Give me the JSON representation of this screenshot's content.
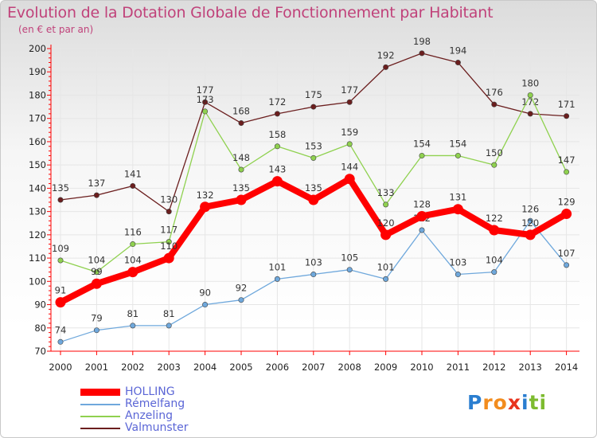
{
  "header": {
    "title": "Evolution de la Dotation Globale de Fonctionnement par Habitant",
    "subtitle": "(en € et par an)"
  },
  "logo": {
    "text": "Proxiti",
    "letters": [
      {
        "ch": "P",
        "color": "#2a7ed0"
      },
      {
        "ch": "r",
        "color": "#f28c1e"
      },
      {
        "ch": "o",
        "color": "#f28c1e"
      },
      {
        "ch": "x",
        "color": "#e8331d"
      },
      {
        "ch": "i",
        "color": "#2a7ed0"
      },
      {
        "ch": "t",
        "color": "#7dbb2f"
      },
      {
        "ch": "i",
        "color": "#7dbb2f"
      }
    ]
  },
  "colors": {
    "title": "#c0427a",
    "legend_text": "#5b66d6",
    "axis": "#ff0000",
    "grid": "#e6e6e6"
  },
  "chart_data": {
    "type": "line",
    "title": "Evolution de la Dotation Globale de Fonctionnement par Habitant",
    "subtitle": "(en € et par an)",
    "x": [
      "2000",
      "2001",
      "2002",
      "2003",
      "2004",
      "2005",
      "2006",
      "2007",
      "2008",
      "2009",
      "2010",
      "2011",
      "2012",
      "2013",
      "2014"
    ],
    "ylim": [
      70,
      200
    ],
    "yticks": [
      70,
      80,
      90,
      100,
      110,
      120,
      130,
      140,
      150,
      160,
      170,
      180,
      190,
      200
    ],
    "grid": true,
    "legend_position": "bottom-left",
    "series": [
      {
        "name": "Valmunster",
        "color": "#6b1e1e",
        "values": [
          135,
          137,
          141,
          130,
          177,
          168,
          172,
          175,
          177,
          192,
          198,
          194,
          176,
          172,
          171
        ]
      },
      {
        "name": "Anzeling",
        "color": "#8fd14f",
        "values": [
          109,
          104,
          116,
          117,
          173,
          148,
          158,
          153,
          159,
          133,
          154,
          154,
          150,
          180,
          147
        ]
      },
      {
        "name": "Rémelfang",
        "color": "#6fa8dc",
        "values": [
          74,
          79,
          81,
          81,
          90,
          92,
          101,
          103,
          105,
          101,
          122,
          103,
          104,
          126,
          107
        ]
      },
      {
        "name": "HOLLING",
        "color": "#ff0000",
        "values": [
          91,
          99,
          104,
          110,
          132,
          135,
          143,
          135,
          144,
          120,
          128,
          131,
          122,
          120,
          129
        ]
      }
    ]
  },
  "legend": {
    "items": [
      {
        "name": "HOLLING",
        "color": "#ff0000"
      },
      {
        "name": "Rémelfang",
        "color": "#6fa8dc"
      },
      {
        "name": "Anzeling",
        "color": "#8fd14f"
      },
      {
        "name": "Valmunster",
        "color": "#6b1e1e"
      }
    ]
  }
}
